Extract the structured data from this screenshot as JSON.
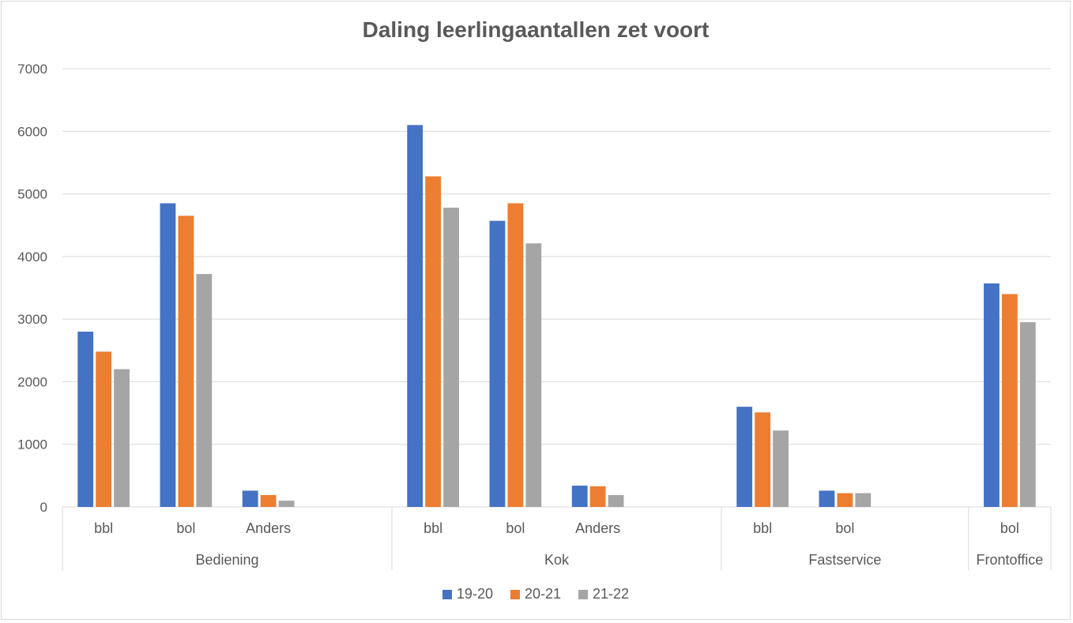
{
  "chart_data": {
    "type": "bar",
    "title": "Daling leerlingaantallen zet voort",
    "xlabel": "",
    "ylabel": "",
    "ylim": [
      0,
      7000
    ],
    "yticks": [
      0,
      1000,
      2000,
      3000,
      4000,
      5000,
      6000,
      7000
    ],
    "grid": true,
    "legend_position": "bottom",
    "groups": [
      {
        "name": "Bediening",
        "categories": [
          "bbl",
          "bol",
          "Anders"
        ],
        "slots": 4
      },
      {
        "name": "Kok",
        "categories": [
          "bbl",
          "bol",
          "Anders"
        ],
        "slots": 4
      },
      {
        "name": "Fastservice",
        "categories": [
          "bbl",
          "bol"
        ],
        "slots": 3
      },
      {
        "name": "Frontoffice",
        "categories": [
          "bol"
        ],
        "slots": 1
      }
    ],
    "categories": [
      "Bediening bbl",
      "Bediening bol",
      "Bediening Anders",
      "Kok bbl",
      "Kok bol",
      "Kok Anders",
      "Fastservice bbl",
      "Fastservice bol",
      "Frontoffice bol"
    ],
    "series": [
      {
        "name": "19-20",
        "color": "#4472C4",
        "values": [
          2800,
          4850,
          260,
          6100,
          4570,
          340,
          1600,
          260,
          3570
        ]
      },
      {
        "name": "20-21",
        "color": "#ED7D31",
        "values": [
          2480,
          4650,
          190,
          5280,
          4850,
          330,
          1510,
          220,
          3400
        ]
      },
      {
        "name": "21-22",
        "color": "#A5A5A5",
        "values": [
          2200,
          3720,
          100,
          4780,
          4210,
          190,
          1220,
          220,
          2950
        ]
      }
    ]
  }
}
